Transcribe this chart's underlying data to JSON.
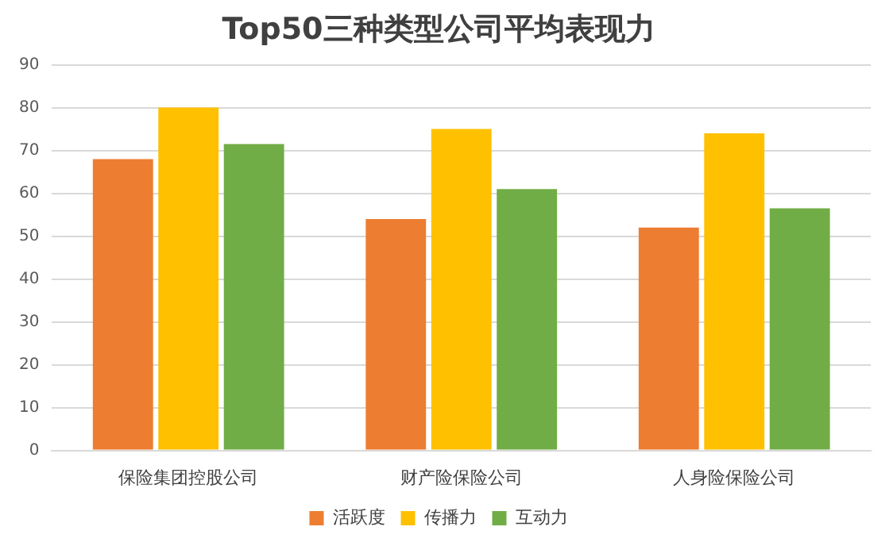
{
  "chart_data": {
    "type": "bar",
    "title": "Top50三种类型公司平均表现力",
    "categories": [
      "保险集团控股公司",
      "财产险保险公司",
      "人身险保险公司"
    ],
    "series": [
      {
        "name": "活跃度",
        "color": "#ed7d31",
        "values": [
          68,
          54,
          52
        ]
      },
      {
        "name": "传播力",
        "color": "#ffc000",
        "values": [
          80,
          75,
          74
        ]
      },
      {
        "name": "互动力",
        "color": "#70ad47",
        "values": [
          71.5,
          61,
          56.5
        ]
      }
    ],
    "ylim": [
      0,
      90
    ],
    "yticks": [
      0,
      10,
      20,
      30,
      40,
      50,
      60,
      70,
      80,
      90
    ],
    "grid": "y",
    "legend": "bottom"
  }
}
